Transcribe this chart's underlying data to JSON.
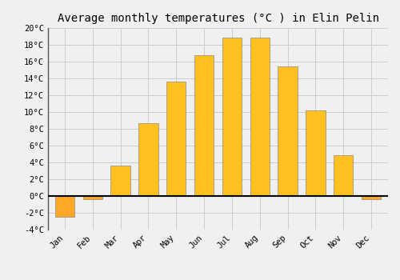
{
  "title": "Average monthly temperatures (°C ) in Elin Pelin",
  "months": [
    "Jan",
    "Feb",
    "Mar",
    "Apr",
    "May",
    "Jun",
    "Jul",
    "Aug",
    "Sep",
    "Oct",
    "Nov",
    "Dec"
  ],
  "values": [
    -2.5,
    -0.4,
    3.6,
    8.7,
    13.6,
    16.8,
    18.9,
    18.9,
    15.4,
    10.2,
    4.9,
    -0.4
  ],
  "bar_color_positive": "#FFC020",
  "bar_color_negative": "#FFA828",
  "ylim": [
    -4,
    20
  ],
  "yticks": [
    -4,
    -2,
    0,
    2,
    4,
    6,
    8,
    10,
    12,
    14,
    16,
    18,
    20
  ],
  "ytick_labels": [
    "-4°C",
    "-2°C",
    "0°C",
    "2°C",
    "4°C",
    "6°C",
    "8°C",
    "10°C",
    "12°C",
    "14°C",
    "16°C",
    "18°C",
    "20°C"
  ],
  "bg_color": "#F0F0F0",
  "grid_color": "#CCCCCC",
  "zero_line_color": "#000000",
  "left_spine_color": "#555555",
  "font_family": "monospace",
  "title_fontsize": 10,
  "tick_fontsize": 7.5,
  "bar_width": 0.7,
  "bar_edgecolor": "#888888",
  "bar_edgewidth": 0.5
}
